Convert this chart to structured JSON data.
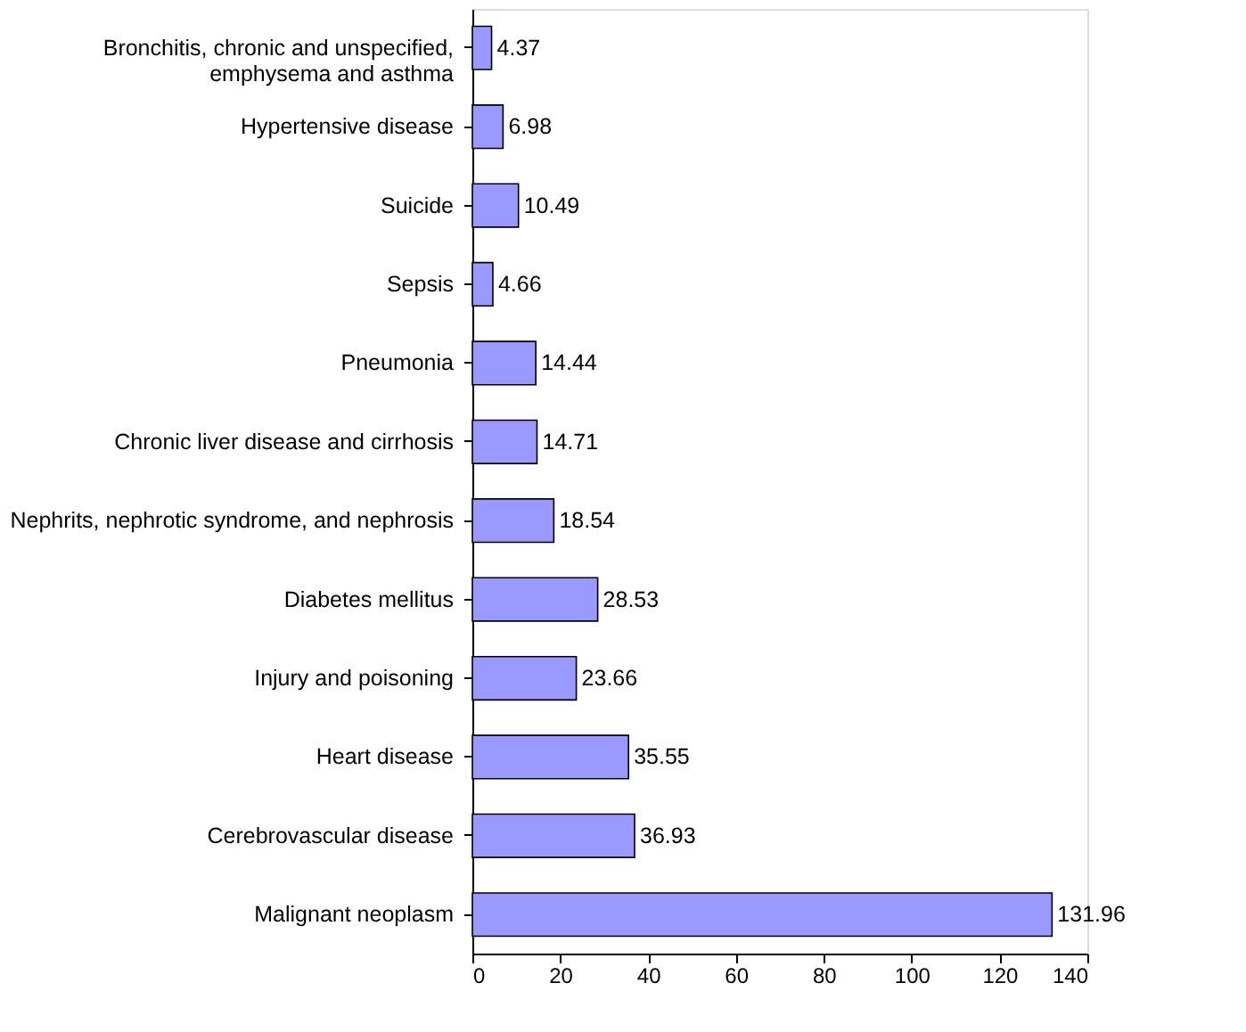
{
  "chart_data": {
    "type": "bar",
    "orientation": "horizontal",
    "categories": [
      "Bronchitis, chronic and unspecified,\nemphysema and asthma",
      "Hypertensive disease",
      "Suicide",
      "Sepsis",
      "Pneumonia",
      "Chronic liver disease and cirrhosis",
      "Nephrits, nephrotic syndrome, and nephrosis",
      "Diabetes mellitus",
      "Injury and poisoning",
      "Heart disease",
      "Cerebrovascular disease",
      "Malignant neoplasm"
    ],
    "values": [
      4.37,
      6.98,
      10.49,
      4.66,
      14.44,
      14.71,
      18.54,
      28.53,
      23.66,
      35.55,
      36.93,
      131.96
    ],
    "color": "#9999ff",
    "xlim": [
      0,
      140
    ],
    "xticks": [
      0,
      20,
      40,
      60,
      80,
      100,
      120,
      140
    ],
    "data_labels": true,
    "grid": false
  }
}
